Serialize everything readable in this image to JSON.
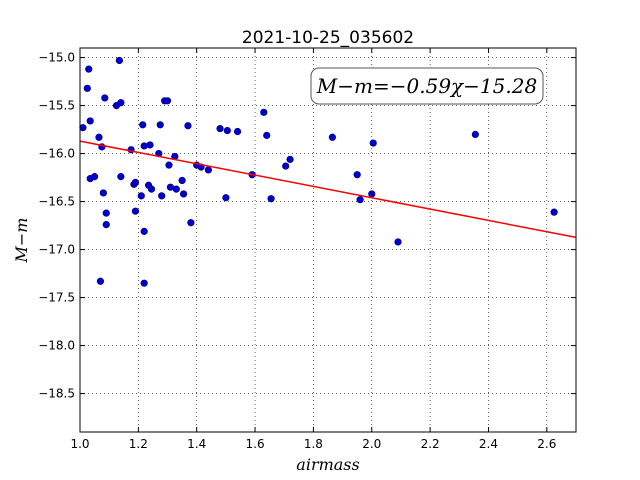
{
  "chart_data": {
    "type": "scatter",
    "title": "2021-10-25_035602",
    "xlabel": "airmass",
    "ylabel": "M−m",
    "annotation": "M−m=−0.59χ−15.28",
    "xlim": [
      1.0,
      2.7
    ],
    "ylim": [
      -18.9,
      -14.9
    ],
    "xticks": [
      "1.0",
      "1.2",
      "1.4",
      "1.6",
      "1.8",
      "2.0",
      "2.2",
      "2.4",
      "2.6"
    ],
    "yticks": [
      "−15.0",
      "−15.5",
      "−16.0",
      "−16.5",
      "−17.0",
      "−17.5",
      "−18.0",
      "−18.5"
    ],
    "grid": true,
    "fit": {
      "slope": -0.59,
      "intercept": -15.28,
      "color": "#ff0000"
    },
    "marker_color": "#0000cc",
    "points": [
      [
        1.01,
        -15.73
      ],
      [
        1.025,
        -15.32
      ],
      [
        1.03,
        -15.12
      ],
      [
        1.035,
        -15.66
      ],
      [
        1.035,
        -16.26
      ],
      [
        1.05,
        -16.24
      ],
      [
        1.065,
        -15.83
      ],
      [
        1.07,
        -17.33
      ],
      [
        1.075,
        -15.93
      ],
      [
        1.08,
        -16.41
      ],
      [
        1.085,
        -15.42
      ],
      [
        1.09,
        -16.62
      ],
      [
        1.09,
        -16.74
      ],
      [
        1.125,
        -15.5
      ],
      [
        1.135,
        -15.03
      ],
      [
        1.14,
        -15.47
      ],
      [
        1.14,
        -16.24
      ],
      [
        1.175,
        -15.96
      ],
      [
        1.185,
        -16.32
      ],
      [
        1.19,
        -16.3
      ],
      [
        1.19,
        -16.6
      ],
      [
        1.21,
        -16.44
      ],
      [
        1.215,
        -15.7
      ],
      [
        1.22,
        -15.92
      ],
      [
        1.22,
        -16.81
      ],
      [
        1.22,
        -17.35
      ],
      [
        1.235,
        -16.33
      ],
      [
        1.24,
        -15.91
      ],
      [
        1.245,
        -16.37
      ],
      [
        1.27,
        -16.0
      ],
      [
        1.275,
        -15.7
      ],
      [
        1.28,
        -16.44
      ],
      [
        1.29,
        -15.45
      ],
      [
        1.3,
        -15.45
      ],
      [
        1.305,
        -16.12
      ],
      [
        1.31,
        -16.35
      ],
      [
        1.325,
        -16.03
      ],
      [
        1.33,
        -16.37
      ],
      [
        1.35,
        -16.28
      ],
      [
        1.355,
        -16.42
      ],
      [
        1.37,
        -15.71
      ],
      [
        1.38,
        -16.72
      ],
      [
        1.4,
        -16.12
      ],
      [
        1.415,
        -16.14
      ],
      [
        1.44,
        -16.17
      ],
      [
        1.48,
        -15.74
      ],
      [
        1.5,
        -16.46
      ],
      [
        1.505,
        -15.76
      ],
      [
        1.54,
        -15.77
      ],
      [
        1.59,
        -16.22
      ],
      [
        1.63,
        -15.57
      ],
      [
        1.64,
        -15.81
      ],
      [
        1.655,
        -16.47
      ],
      [
        1.705,
        -16.13
      ],
      [
        1.72,
        -16.06
      ],
      [
        1.865,
        -15.83
      ],
      [
        1.95,
        -16.22
      ],
      [
        1.96,
        -16.48
      ],
      [
        2.0,
        -16.42
      ],
      [
        2.005,
        -15.89
      ],
      [
        2.09,
        -16.92
      ],
      [
        2.355,
        -15.8
      ],
      [
        2.625,
        -16.61
      ]
    ]
  }
}
